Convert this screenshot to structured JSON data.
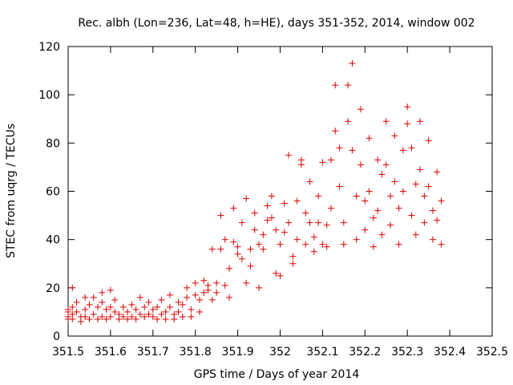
{
  "chart_data": {
    "type": "scatter",
    "title": "Rec. albh (Lon=236, Lat=48, h=HE), days 351-352, 2014, window 002",
    "xlabel": "GPS time / Days of year 2014",
    "ylabel": "STEC from uqrg / TECUs",
    "xlim": [
      351.5,
      352.5
    ],
    "ylim": [
      0,
      120
    ],
    "x_ticks": [
      "351.5",
      "351.6",
      "351.7",
      "351.8",
      "351.9",
      "352",
      "352.1",
      "352.2",
      "352.3",
      "352.4",
      "352.5"
    ],
    "y_ticks": [
      "0",
      "20",
      "40",
      "60",
      "80",
      "100",
      "120"
    ],
    "marker": "+",
    "color": "#dd0000",
    "grid": false,
    "points": [
      [
        351.5,
        11
      ],
      [
        351.5,
        10
      ],
      [
        351.5,
        8
      ],
      [
        351.5,
        7
      ],
      [
        351.51,
        20
      ],
      [
        351.51,
        12
      ],
      [
        351.51,
        9
      ],
      [
        351.51,
        7
      ],
      [
        351.52,
        14
      ],
      [
        351.52,
        10
      ],
      [
        351.53,
        8
      ],
      [
        351.53,
        6
      ],
      [
        351.54,
        16
      ],
      [
        351.54,
        11
      ],
      [
        351.54,
        8
      ],
      [
        351.55,
        13
      ],
      [
        351.55,
        7
      ],
      [
        351.56,
        16
      ],
      [
        351.56,
        9
      ],
      [
        351.57,
        12
      ],
      [
        351.57,
        7
      ],
      [
        351.58,
        18
      ],
      [
        351.58,
        14
      ],
      [
        351.58,
        8
      ],
      [
        351.59,
        11
      ],
      [
        351.59,
        7
      ],
      [
        351.6,
        19
      ],
      [
        351.6,
        12
      ],
      [
        351.6,
        8
      ],
      [
        351.61,
        15
      ],
      [
        351.61,
        10
      ],
      [
        351.62,
        9
      ],
      [
        351.62,
        7
      ],
      [
        351.63,
        12
      ],
      [
        351.63,
        8
      ],
      [
        351.64,
        10
      ],
      [
        351.64,
        7
      ],
      [
        351.65,
        13
      ],
      [
        351.65,
        8
      ],
      [
        351.66,
        11
      ],
      [
        351.66,
        7
      ],
      [
        351.67,
        16
      ],
      [
        351.67,
        9
      ],
      [
        351.68,
        12
      ],
      [
        351.68,
        8
      ],
      [
        351.69,
        14
      ],
      [
        351.69,
        9
      ],
      [
        351.7,
        11
      ],
      [
        351.7,
        8
      ],
      [
        351.71,
        12
      ],
      [
        351.71,
        7
      ],
      [
        351.72,
        15
      ],
      [
        351.72,
        9
      ],
      [
        351.73,
        10
      ],
      [
        351.73,
        7
      ],
      [
        351.74,
        17
      ],
      [
        351.74,
        12
      ],
      [
        351.75,
        9
      ],
      [
        351.75,
        7
      ],
      [
        351.76,
        14
      ],
      [
        351.76,
        10
      ],
      [
        351.77,
        13
      ],
      [
        351.77,
        8
      ],
      [
        351.78,
        20
      ],
      [
        351.78,
        16
      ],
      [
        351.79,
        11
      ],
      [
        351.79,
        8
      ],
      [
        351.8,
        22
      ],
      [
        351.8,
        17
      ],
      [
        351.81,
        15
      ],
      [
        351.81,
        10
      ],
      [
        351.82,
        23
      ],
      [
        351.82,
        18
      ],
      [
        351.83,
        19
      ],
      [
        351.83,
        21
      ],
      [
        351.84,
        15
      ],
      [
        351.84,
        36
      ],
      [
        351.85,
        22
      ],
      [
        351.85,
        18
      ],
      [
        351.86,
        36
      ],
      [
        351.86,
        50
      ],
      [
        351.87,
        40
      ],
      [
        351.87,
        21
      ],
      [
        351.88,
        16
      ],
      [
        351.88,
        28
      ],
      [
        351.89,
        39
      ],
      [
        351.89,
        53
      ],
      [
        351.9,
        37
      ],
      [
        351.9,
        34
      ],
      [
        351.91,
        32
      ],
      [
        351.91,
        47
      ],
      [
        351.92,
        57
      ],
      [
        351.92,
        22
      ],
      [
        351.93,
        29
      ],
      [
        351.93,
        36
      ],
      [
        351.94,
        44
      ],
      [
        351.94,
        51
      ],
      [
        351.95,
        38
      ],
      [
        351.95,
        20
      ],
      [
        351.96,
        36
      ],
      [
        351.96,
        42
      ],
      [
        351.97,
        48
      ],
      [
        351.97,
        54
      ],
      [
        351.98,
        58
      ],
      [
        351.98,
        49
      ],
      [
        351.99,
        44
      ],
      [
        351.99,
        26
      ],
      [
        352.0,
        25
      ],
      [
        352.0,
        38
      ],
      [
        352.01,
        43
      ],
      [
        352.01,
        55
      ],
      [
        352.02,
        75
      ],
      [
        352.02,
        47
      ],
      [
        352.03,
        33
      ],
      [
        352.03,
        30
      ],
      [
        352.04,
        56
      ],
      [
        352.04,
        40
      ],
      [
        352.05,
        73
      ],
      [
        352.05,
        71
      ],
      [
        352.06,
        51
      ],
      [
        352.06,
        38
      ],
      [
        352.07,
        64
      ],
      [
        352.07,
        47
      ],
      [
        352.08,
        41
      ],
      [
        352.08,
        35
      ],
      [
        352.09,
        47
      ],
      [
        352.09,
        58
      ],
      [
        352.1,
        72
      ],
      [
        352.1,
        38
      ],
      [
        352.11,
        37
      ],
      [
        352.11,
        46
      ],
      [
        352.12,
        53
      ],
      [
        352.12,
        73
      ],
      [
        352.13,
        104
      ],
      [
        352.13,
        85
      ],
      [
        352.14,
        78
      ],
      [
        352.14,
        62
      ],
      [
        352.15,
        47
      ],
      [
        352.15,
        38
      ],
      [
        352.16,
        89
      ],
      [
        352.16,
        104
      ],
      [
        352.17,
        113
      ],
      [
        352.17,
        77
      ],
      [
        352.18,
        58
      ],
      [
        352.18,
        40
      ],
      [
        352.19,
        94
      ],
      [
        352.19,
        71
      ],
      [
        352.2,
        56
      ],
      [
        352.2,
        44
      ],
      [
        352.21,
        82
      ],
      [
        352.21,
        60
      ],
      [
        352.22,
        49
      ],
      [
        352.22,
        37
      ],
      [
        352.23,
        73
      ],
      [
        352.23,
        52
      ],
      [
        352.24,
        67
      ],
      [
        352.24,
        42
      ],
      [
        352.25,
        89
      ],
      [
        352.25,
        71
      ],
      [
        352.26,
        58
      ],
      [
        352.26,
        46
      ],
      [
        352.27,
        83
      ],
      [
        352.27,
        64
      ],
      [
        352.28,
        53
      ],
      [
        352.28,
        38
      ],
      [
        352.29,
        77
      ],
      [
        352.29,
        60
      ],
      [
        352.3,
        95
      ],
      [
        352.3,
        88
      ],
      [
        352.31,
        78
      ],
      [
        352.31,
        50
      ],
      [
        352.32,
        63
      ],
      [
        352.32,
        42
      ],
      [
        352.33,
        89
      ],
      [
        352.33,
        69
      ],
      [
        352.34,
        58
      ],
      [
        352.34,
        47
      ],
      [
        352.35,
        81
      ],
      [
        352.35,
        62
      ],
      [
        352.36,
        52
      ],
      [
        352.36,
        40
      ],
      [
        352.37,
        68
      ],
      [
        352.37,
        48
      ],
      [
        352.38,
        56
      ],
      [
        352.38,
        38
      ]
    ]
  }
}
